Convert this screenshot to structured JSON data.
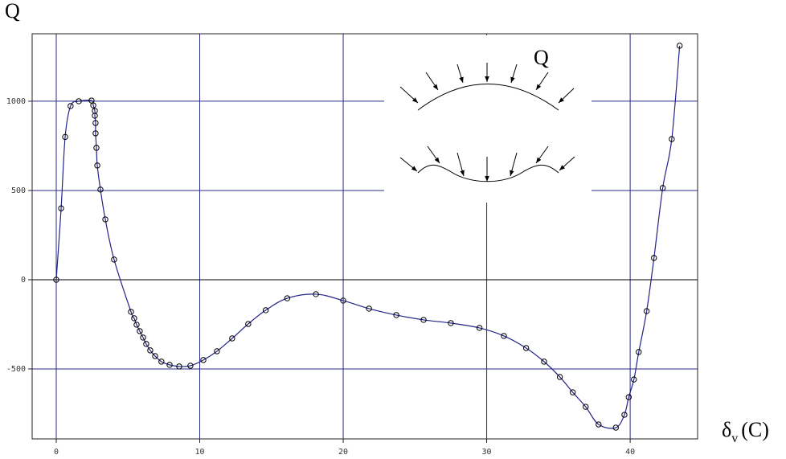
{
  "chart_data": {
    "type": "line",
    "y_label": "Q",
    "x_label": {
      "symbol": "δ",
      "subscript": "v",
      "unit": "(C)"
    },
    "annotation": "Q",
    "x": [
      0,
      0.34,
      0.62,
      1.0,
      1.57,
      2.46,
      2.58,
      2.69,
      2.69,
      2.74,
      2.74,
      2.8,
      2.86,
      3.08,
      3.42,
      4.03,
      5.21,
      5.43,
      5.6,
      5.82,
      6.05,
      6.27,
      6.55,
      6.89,
      7.33,
      7.9,
      8.57,
      9.35,
      10.25,
      11.2,
      12.26,
      13.38,
      14.6,
      16.1,
      18.1,
      20,
      21.8,
      23.7,
      25.6,
      27.5,
      29.5,
      31.2,
      32.75,
      34.0,
      35.1,
      36.0,
      36.9,
      37.8,
      39.0,
      39.6,
      39.9,
      40.26,
      40.6,
      41.15,
      41.66,
      42.27,
      42.9,
      43.45
    ],
    "series": [
      {
        "name": "Q",
        "color": "#23238a",
        "values": [
          0,
          400,
          800,
          973,
          1000,
          1004,
          977,
          946,
          919,
          878,
          820,
          739,
          640,
          505,
          338,
          113,
          -180,
          -216,
          -252,
          -288,
          -324,
          -360,
          -396,
          -428,
          -459,
          -477,
          -486,
          -482,
          -450,
          -401,
          -329,
          -248,
          -171,
          -104,
          -81,
          -117,
          -162,
          -198,
          -225,
          -243,
          -270,
          -315,
          -383,
          -459,
          -545,
          -631,
          -712,
          -811,
          -829,
          -757,
          -658,
          -559,
          -405,
          -176,
          122,
          514,
          788,
          1311
        ]
      }
    ],
    "xlim": [
      -1.68,
      44.7
    ],
    "ylim": [
      -892,
      1378
    ],
    "xticks": [
      0,
      10,
      20,
      30,
      40
    ],
    "yticks": [
      -500,
      0,
      500,
      1000
    ],
    "grid": true,
    "grid_color": "#2a2a8c",
    "zero_line_color": "#000000",
    "marker_color": "#000000"
  }
}
